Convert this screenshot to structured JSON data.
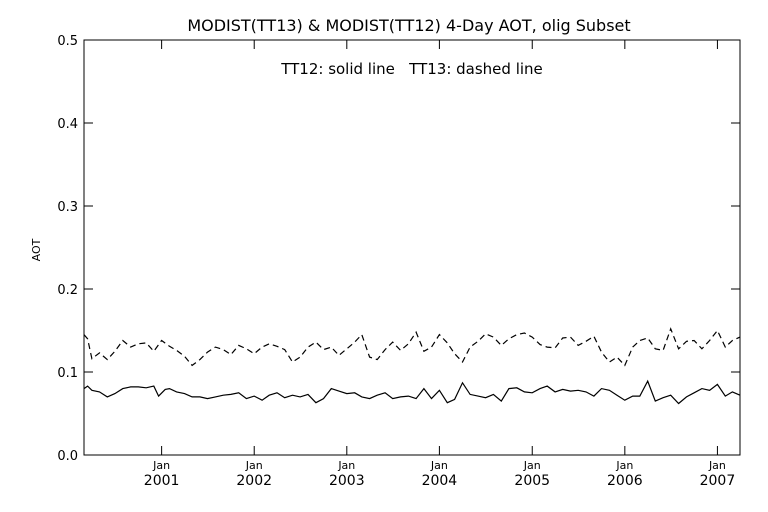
{
  "chart_data": {
    "type": "line",
    "title": "MODIST(TT13) & MODIST(TT12) 4-Day AOT, olig Subset",
    "annotation": "TT12: solid line   TT13: dashed line",
    "xlabel": "",
    "ylabel": "AOT",
    "xlim": [
      "2000-03-01",
      "2007-03-31"
    ],
    "ylim": [
      0.0,
      0.5
    ],
    "yticks": [
      "0.0",
      "0.1",
      "0.2",
      "0.3",
      "0.4",
      "0.5"
    ],
    "xticks": [
      {
        "month": "Jan",
        "year": "2001",
        "date": "2001-01-01"
      },
      {
        "month": "Jan",
        "year": "2002",
        "date": "2002-01-01"
      },
      {
        "month": "Jan",
        "year": "2003",
        "date": "2003-01-01"
      },
      {
        "month": "Jan",
        "year": "2004",
        "date": "2004-01-01"
      },
      {
        "month": "Jan",
        "year": "2005",
        "date": "2005-01-01"
      },
      {
        "month": "Jan",
        "year": "2006",
        "date": "2006-01-01"
      },
      {
        "month": "Jan",
        "year": "2007",
        "date": "2007-01-01"
      }
    ],
    "grid": false,
    "legend": "none",
    "series": [
      {
        "style": "solid",
        "color": "#000000",
        "points": [
          [
            "2000-03-01",
            0.08
          ],
          [
            "2000-03-15",
            0.083
          ],
          [
            "2000-04-01",
            0.078
          ],
          [
            "2000-05-01",
            0.076
          ],
          [
            "2000-06-01",
            0.07
          ],
          [
            "2000-07-01",
            0.074
          ],
          [
            "2000-08-01",
            0.08
          ],
          [
            "2000-09-01",
            0.082
          ],
          [
            "2000-10-01",
            0.082
          ],
          [
            "2000-11-01",
            0.081
          ],
          [
            "2000-12-01",
            0.083
          ],
          [
            "2000-12-20",
            0.071
          ],
          [
            "2001-01-15",
            0.079
          ],
          [
            "2001-02-01",
            0.08
          ],
          [
            "2001-03-01",
            0.076
          ],
          [
            "2001-04-01",
            0.074
          ],
          [
            "2001-05-01",
            0.07
          ],
          [
            "2001-06-01",
            0.07
          ],
          [
            "2001-07-01",
            0.068
          ],
          [
            "2001-08-01",
            0.07
          ],
          [
            "2001-09-01",
            0.072
          ],
          [
            "2001-10-01",
            0.073
          ],
          [
            "2001-11-01",
            0.075
          ],
          [
            "2001-12-01",
            0.068
          ],
          [
            "2002-01-01",
            0.071
          ],
          [
            "2002-02-01",
            0.066
          ],
          [
            "2002-03-01",
            0.072
          ],
          [
            "2002-04-01",
            0.075
          ],
          [
            "2002-05-01",
            0.069
          ],
          [
            "2002-06-01",
            0.072
          ],
          [
            "2002-07-01",
            0.07
          ],
          [
            "2002-08-01",
            0.073
          ],
          [
            "2002-09-01",
            0.063
          ],
          [
            "2002-10-01",
            0.068
          ],
          [
            "2002-11-01",
            0.08
          ],
          [
            "2002-12-01",
            0.077
          ],
          [
            "2003-01-01",
            0.074
          ],
          [
            "2003-02-01",
            0.075
          ],
          [
            "2003-03-01",
            0.07
          ],
          [
            "2003-04-01",
            0.068
          ],
          [
            "2003-05-01",
            0.072
          ],
          [
            "2003-06-01",
            0.075
          ],
          [
            "2003-07-01",
            0.068
          ],
          [
            "2003-08-01",
            0.07
          ],
          [
            "2003-09-01",
            0.071
          ],
          [
            "2003-10-01",
            0.068
          ],
          [
            "2003-11-01",
            0.08
          ],
          [
            "2003-12-01",
            0.068
          ],
          [
            "2004-01-01",
            0.078
          ],
          [
            "2004-02-01",
            0.063
          ],
          [
            "2004-03-01",
            0.067
          ],
          [
            "2004-04-01",
            0.087
          ],
          [
            "2004-05-01",
            0.073
          ],
          [
            "2004-06-01",
            0.071
          ],
          [
            "2004-07-01",
            0.069
          ],
          [
            "2004-08-01",
            0.073
          ],
          [
            "2004-09-01",
            0.065
          ],
          [
            "2004-10-01",
            0.08
          ],
          [
            "2004-11-01",
            0.081
          ],
          [
            "2004-12-01",
            0.076
          ],
          [
            "2005-01-01",
            0.075
          ],
          [
            "2005-02-01",
            0.08
          ],
          [
            "2005-03-01",
            0.083
          ],
          [
            "2005-04-01",
            0.076
          ],
          [
            "2005-05-01",
            0.079
          ],
          [
            "2005-06-01",
            0.077
          ],
          [
            "2005-07-01",
            0.078
          ],
          [
            "2005-08-01",
            0.076
          ],
          [
            "2005-09-01",
            0.071
          ],
          [
            "2005-10-01",
            0.08
          ],
          [
            "2005-11-01",
            0.078
          ],
          [
            "2005-12-01",
            0.072
          ],
          [
            "2006-01-01",
            0.066
          ],
          [
            "2006-02-01",
            0.071
          ],
          [
            "2006-03-01",
            0.071
          ],
          [
            "2006-04-01",
            0.089
          ],
          [
            "2006-05-01",
            0.065
          ],
          [
            "2006-06-01",
            0.069
          ],
          [
            "2006-07-01",
            0.072
          ],
          [
            "2006-08-01",
            0.062
          ],
          [
            "2006-09-01",
            0.07
          ],
          [
            "2006-10-01",
            0.075
          ],
          [
            "2006-11-01",
            0.08
          ],
          [
            "2006-12-01",
            0.078
          ],
          [
            "2007-01-01",
            0.085
          ],
          [
            "2007-02-01",
            0.071
          ],
          [
            "2007-03-01",
            0.076
          ],
          [
            "2007-03-31",
            0.072
          ]
        ]
      },
      {
        "style": "dashed",
        "color": "#000000",
        "points": [
          [
            "2000-03-01",
            0.145
          ],
          [
            "2000-03-15",
            0.14
          ],
          [
            "2000-04-01",
            0.116
          ],
          [
            "2000-05-01",
            0.123
          ],
          [
            "2000-06-01",
            0.115
          ],
          [
            "2000-07-01",
            0.125
          ],
          [
            "2000-08-01",
            0.138
          ],
          [
            "2000-09-01",
            0.13
          ],
          [
            "2000-10-01",
            0.134
          ],
          [
            "2000-11-01",
            0.135
          ],
          [
            "2000-12-01",
            0.125
          ],
          [
            "2001-01-01",
            0.138
          ],
          [
            "2001-02-01",
            0.131
          ],
          [
            "2001-03-01",
            0.126
          ],
          [
            "2001-04-01",
            0.119
          ],
          [
            "2001-05-01",
            0.108
          ],
          [
            "2001-06-01",
            0.115
          ],
          [
            "2001-07-01",
            0.124
          ],
          [
            "2001-08-01",
            0.13
          ],
          [
            "2001-09-01",
            0.127
          ],
          [
            "2001-10-01",
            0.121
          ],
          [
            "2001-11-01",
            0.132
          ],
          [
            "2001-12-01",
            0.128
          ],
          [
            "2002-01-01",
            0.122
          ],
          [
            "2002-02-01",
            0.13
          ],
          [
            "2002-03-01",
            0.134
          ],
          [
            "2002-04-01",
            0.131
          ],
          [
            "2002-05-01",
            0.127
          ],
          [
            "2002-06-01",
            0.112
          ],
          [
            "2002-07-01",
            0.118
          ],
          [
            "2002-08-01",
            0.13
          ],
          [
            "2002-09-01",
            0.136
          ],
          [
            "2002-10-01",
            0.127
          ],
          [
            "2002-11-01",
            0.13
          ],
          [
            "2002-12-01",
            0.12
          ],
          [
            "2003-01-01",
            0.128
          ],
          [
            "2003-02-01",
            0.136
          ],
          [
            "2003-03-01",
            0.145
          ],
          [
            "2003-04-01",
            0.118
          ],
          [
            "2003-05-01",
            0.115
          ],
          [
            "2003-06-01",
            0.127
          ],
          [
            "2003-07-01",
            0.136
          ],
          [
            "2003-08-01",
            0.126
          ],
          [
            "2003-09-01",
            0.134
          ],
          [
            "2003-10-01",
            0.148
          ],
          [
            "2003-11-01",
            0.125
          ],
          [
            "2003-12-01",
            0.13
          ],
          [
            "2004-01-01",
            0.145
          ],
          [
            "2004-02-01",
            0.135
          ],
          [
            "2004-03-01",
            0.122
          ],
          [
            "2004-04-01",
            0.112
          ],
          [
            "2004-05-01",
            0.13
          ],
          [
            "2004-06-01",
            0.137
          ],
          [
            "2004-07-01",
            0.146
          ],
          [
            "2004-08-01",
            0.142
          ],
          [
            "2004-09-01",
            0.132
          ],
          [
            "2004-10-01",
            0.14
          ],
          [
            "2004-11-01",
            0.145
          ],
          [
            "2004-12-01",
            0.147
          ],
          [
            "2005-01-01",
            0.142
          ],
          [
            "2005-02-01",
            0.133
          ],
          [
            "2005-03-01",
            0.13
          ],
          [
            "2005-04-01",
            0.129
          ],
          [
            "2005-05-01",
            0.141
          ],
          [
            "2005-06-01",
            0.142
          ],
          [
            "2005-07-01",
            0.132
          ],
          [
            "2005-08-01",
            0.137
          ],
          [
            "2005-09-01",
            0.143
          ],
          [
            "2005-10-01",
            0.124
          ],
          [
            "2005-11-01",
            0.112
          ],
          [
            "2005-12-01",
            0.118
          ],
          [
            "2006-01-01",
            0.108
          ],
          [
            "2006-02-01",
            0.13
          ],
          [
            "2006-03-01",
            0.138
          ],
          [
            "2006-04-01",
            0.141
          ],
          [
            "2006-05-01",
            0.128
          ],
          [
            "2006-06-01",
            0.126
          ],
          [
            "2006-07-01",
            0.152
          ],
          [
            "2006-08-01",
            0.128
          ],
          [
            "2006-09-01",
            0.137
          ],
          [
            "2006-10-01",
            0.138
          ],
          [
            "2006-11-01",
            0.128
          ],
          [
            "2006-12-01",
            0.138
          ],
          [
            "2007-01-01",
            0.15
          ],
          [
            "2007-02-01",
            0.13
          ],
          [
            "2007-03-01",
            0.138
          ],
          [
            "2007-03-31",
            0.142
          ]
        ]
      }
    ]
  }
}
